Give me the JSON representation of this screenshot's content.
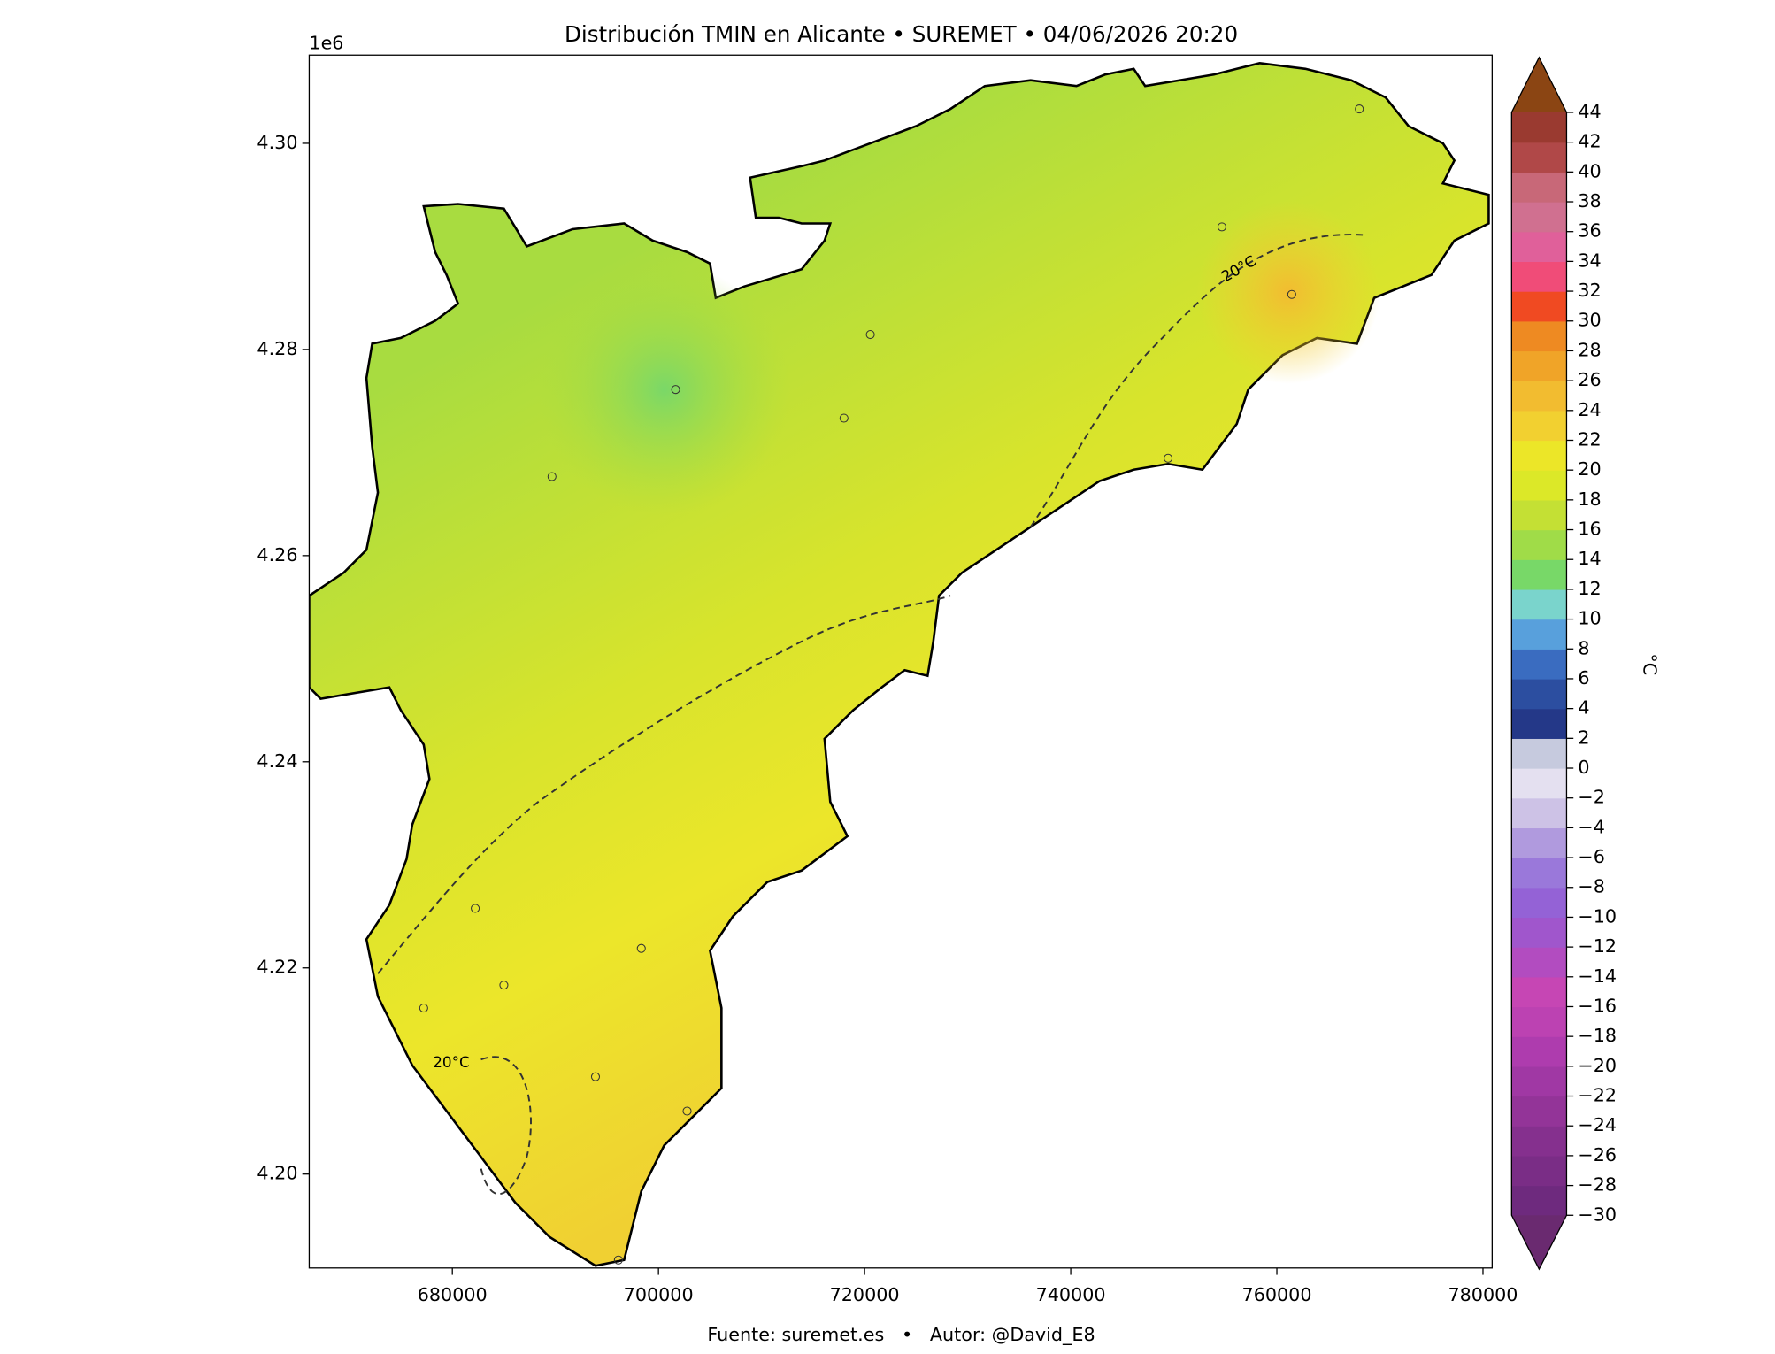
{
  "chart_data": {
    "type": "map",
    "title": "Distribución TMIN en Alicante • SUREMET • 04/06/2026 20:20",
    "footer": "Fuente: suremet.es   •   Autor: @David_E8",
    "y_offset_label": "1e6",
    "xlim": [
      666111,
      780889
    ],
    "ylim": [
      4.19089,
      4.30856
    ],
    "xticks": [
      680000,
      700000,
      720000,
      740000,
      760000,
      780000
    ],
    "yticks": [
      {
        "value": 4.2,
        "label": "4.20"
      },
      {
        "value": 4.22,
        "label": "4.22"
      },
      {
        "value": 4.24,
        "label": "4.24"
      },
      {
        "value": 4.26,
        "label": "4.26"
      },
      {
        "value": 4.28,
        "label": "4.28"
      },
      {
        "value": 4.3,
        "label": "4.30"
      }
    ],
    "contour_labels": [
      "20°C",
      "20°C"
    ],
    "colorbar": {
      "label": "°C",
      "clim": [
        -30,
        44
      ],
      "ticks": [
        {
          "value": -30,
          "label": "−30"
        },
        {
          "value": -28,
          "label": "−28"
        },
        {
          "value": -26,
          "label": "−26"
        },
        {
          "value": -24,
          "label": "−24"
        },
        {
          "value": -22,
          "label": "−22"
        },
        {
          "value": -20,
          "label": "−20"
        },
        {
          "value": -18,
          "label": "−18"
        },
        {
          "value": -16,
          "label": "−16"
        },
        {
          "value": -14,
          "label": "−14"
        },
        {
          "value": -12,
          "label": "−12"
        },
        {
          "value": -10,
          "label": "−10"
        },
        {
          "value": -8,
          "label": "−8"
        },
        {
          "value": -6,
          "label": "−6"
        },
        {
          "value": -4,
          "label": "−4"
        },
        {
          "value": -2,
          "label": "−2"
        },
        0,
        2,
        4,
        6,
        8,
        10,
        12,
        14,
        16,
        18,
        20,
        22,
        24,
        26,
        28,
        30,
        32,
        34,
        36,
        38,
        40,
        42,
        44
      ],
      "colors": [
        "#6e2a7e",
        "#7a2d86",
        "#85308e",
        "#933498",
        "#a038a4",
        "#ae3cae",
        "#bc42b2",
        "#c646b4",
        "#b24cc0",
        "#a056cc",
        "#9462d6",
        "#9a78da",
        "#b09ade",
        "#cdc2e6",
        "#e4e0f0",
        "#c6cade",
        "#243888",
        "#2c4ea0",
        "#3a6cc0",
        "#58a0dc",
        "#7ad4cc",
        "#78d868",
        "#a0dc48",
        "#c4e034",
        "#dce828",
        "#ece628",
        "#f2d030",
        "#f2bc30",
        "#f0a428",
        "#ee8a22",
        "#f04a22",
        "#f04c78",
        "#e0609a",
        "#d07090",
        "#c86878",
        "#b04848",
        "#9a3a30"
      ],
      "extend_colors": [
        "#6a2a70",
        "#8b4513"
      ]
    }
  }
}
